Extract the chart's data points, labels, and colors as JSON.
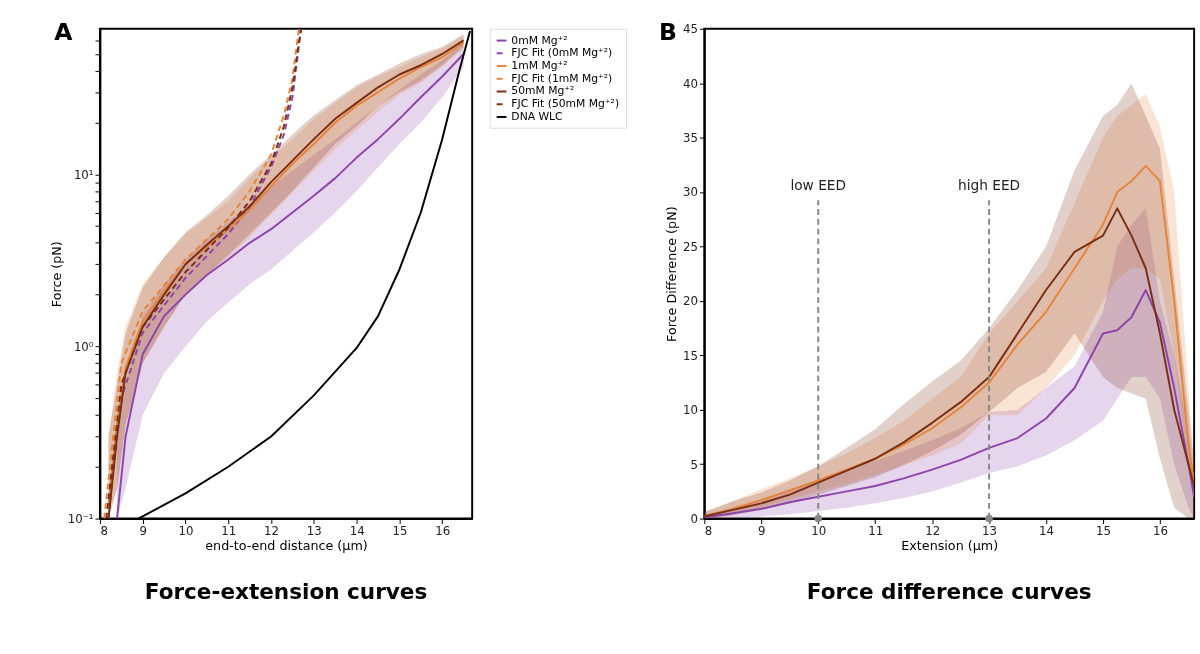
{
  "chart_data": [
    {
      "type": "line",
      "title": "Force-extension curves",
      "xlabel": "end-to-end distance (μm)",
      "ylabel": "Force (pN)",
      "annotations": [
        "A"
      ],
      "log": "y",
      "grid": false,
      "legend": "right",
      "xlim": [
        8,
        16.7
      ],
      "xticks": [
        8,
        9,
        10,
        11,
        12,
        13,
        14,
        15,
        16
      ],
      "ylim": [
        0.1,
        70
      ],
      "yticks": [
        {
          "value": 0.1,
          "label": "10⁻¹"
        },
        {
          "value": 0.2,
          "label": null
        },
        {
          "value": 0.3,
          "label": null
        },
        {
          "value": 0.4,
          "label": null
        },
        {
          "value": 0.5,
          "label": null
        },
        {
          "value": 0.6,
          "label": null
        },
        {
          "value": 0.7,
          "label": null
        },
        {
          "value": 0.8,
          "label": null
        },
        {
          "value": 0.9,
          "label": null
        },
        {
          "value": 1,
          "label": "10⁰"
        },
        {
          "value": 2,
          "label": null
        },
        {
          "value": 3,
          "label": null
        },
        {
          "value": 4,
          "label": null
        },
        {
          "value": 5,
          "label": null
        },
        {
          "value": 6,
          "label": null
        },
        {
          "value": 7,
          "label": null
        },
        {
          "value": 8,
          "label": null
        },
        {
          "value": 9,
          "label": null
        },
        {
          "value": 10,
          "label": "10¹"
        },
        {
          "value": 20,
          "label": null
        },
        {
          "value": 30,
          "label": null
        },
        {
          "value": 40,
          "label": null
        },
        {
          "value": 50,
          "label": null
        },
        {
          "value": 60,
          "label": null
        }
      ],
      "series": [
        {
          "name": "0mM Mg⁺²",
          "color": "#8e44ad",
          "line_style": "solid",
          "x": [
            8.4,
            8.6,
            9,
            9.5,
            10,
            10.5,
            11,
            11.5,
            12,
            12.5,
            13,
            13.5,
            14,
            14.5,
            15,
            15.5,
            16,
            16.5
          ],
          "values": [
            0.1,
            0.3,
            0.9,
            1.5,
            2.0,
            2.6,
            3.2,
            4.0,
            4.8,
            6,
            7.5,
            9.5,
            12.5,
            16,
            21,
            28,
            37,
            50
          ],
          "lower": [
            0.1,
            0.15,
            0.4,
            0.7,
            1.0,
            1.4,
            1.8,
            2.3,
            2.8,
            3.6,
            4.6,
            6,
            8,
            11,
            15,
            20,
            28,
            42
          ],
          "upper": [
            0.3,
            0.6,
            1.5,
            2.3,
            3.2,
            4.2,
            5.3,
            6.7,
            8.5,
            10.5,
            13,
            16,
            20,
            25,
            31,
            38,
            46,
            58
          ]
        },
        {
          "name": "FJC Fit (0mM Mg⁺²)",
          "color": "#8e44ad",
          "line_style": "dashed",
          "x": [
            8.2,
            8.5,
            9,
            10,
            11,
            11.5,
            12,
            12.3,
            12.5,
            12.7
          ],
          "values": [
            0.1,
            0.5,
            1.2,
            2.5,
            4.5,
            6.5,
            11,
            17,
            28,
            70
          ]
        },
        {
          "name": "1mM Mg⁺²",
          "color": "#e8843a",
          "line_style": "solid",
          "x": [
            8.2,
            8.4,
            8.6,
            9,
            9.5,
            10,
            10.5,
            11,
            11.5,
            12,
            12.5,
            13,
            13.5,
            14,
            14.5,
            15,
            15.5,
            16,
            16.5
          ],
          "values": [
            0.12,
            0.35,
            0.75,
            1.4,
            2.1,
            3.0,
            3.8,
            4.8,
            6.2,
            8.5,
            11.5,
            15,
            20,
            25,
            30,
            36,
            42,
            48,
            58
          ],
          "lower": [
            0.1,
            0.15,
            0.35,
            0.8,
            1.3,
            2.0,
            2.6,
            3.3,
            4.3,
            5.8,
            7.8,
            10.5,
            14,
            18,
            23,
            29,
            34,
            42,
            54
          ],
          "upper": [
            0.3,
            0.7,
            1.3,
            2.3,
            3.3,
            4.5,
            5.6,
            7,
            9.5,
            12.5,
            16,
            21,
            26,
            32,
            37,
            42,
            48,
            54,
            64
          ]
        },
        {
          "name": "FJC Fit (1mM Mg⁺²)",
          "color": "#e8843a",
          "line_style": "dashed",
          "x": [
            8.1,
            8.5,
            9,
            10,
            11,
            11.5,
            12,
            12.3,
            12.5,
            12.65
          ],
          "values": [
            0.1,
            0.8,
            1.6,
            3.2,
            5.5,
            8,
            13,
            22,
            36,
            70
          ]
        },
        {
          "name": "50mM Mg⁺²",
          "color": "#7b2e12",
          "line_style": "solid",
          "x": [
            8.2,
            8.4,
            8.6,
            9,
            9.5,
            10,
            10.5,
            11,
            11.5,
            12,
            12.5,
            13,
            13.5,
            14,
            14.5,
            15,
            15.5,
            16,
            16.5
          ],
          "values": [
            0.1,
            0.3,
            0.7,
            1.3,
            2.0,
            3.0,
            3.9,
            5.0,
            6.5,
            9,
            12,
            16,
            21,
            26,
            32,
            38,
            43,
            50,
            60
          ],
          "lower": [
            0.1,
            0.15,
            0.35,
            0.8,
            1.3,
            2.0,
            2.6,
            3.4,
            4.5,
            6,
            8,
            11,
            15,
            19,
            25,
            30,
            35,
            43,
            55
          ],
          "upper": [
            0.3,
            0.6,
            1.2,
            2.2,
            3.3,
            4.6,
            5.8,
            7.5,
            10,
            13,
            17,
            22,
            27,
            33,
            38,
            44,
            50,
            55,
            65
          ]
        },
        {
          "name": "FJC Fit (50mM Mg⁺²)",
          "color": "#7b2e12",
          "line_style": "dashed",
          "x": [
            8.15,
            8.5,
            9,
            10,
            11,
            11.5,
            12,
            12.3,
            12.5,
            12.7
          ],
          "values": [
            0.1,
            0.6,
            1.3,
            2.7,
            4.9,
            7.0,
            11.5,
            19,
            32,
            70
          ]
        },
        {
          "name": "DNA WLC",
          "color": "#000000",
          "line_style": "solid",
          "x": [
            8.9,
            10,
            11,
            12,
            13,
            14,
            14.5,
            15,
            15.5,
            16,
            16.4,
            16.65
          ],
          "values": [
            0.1,
            0.14,
            0.2,
            0.3,
            0.52,
            0.98,
            1.5,
            2.8,
            6,
            16,
            40,
            68
          ]
        }
      ]
    },
    {
      "type": "line",
      "title": "Force difference curves",
      "xlabel": "Extension (μm)",
      "ylabel": "Force Difference (pN)",
      "annotations": [
        "B"
      ],
      "grid": false,
      "xlim": [
        8,
        16.6
      ],
      "xticks": [
        8,
        9,
        10,
        11,
        12,
        13,
        14,
        15,
        16
      ],
      "ylim": [
        0,
        45
      ],
      "yticks": [
        0,
        5,
        10,
        15,
        20,
        25,
        30,
        35,
        40,
        45
      ],
      "ref_lines": [
        {
          "axis": "x",
          "value": 10,
          "label": "low EED",
          "color": "#888888",
          "line_style": "dashed"
        },
        {
          "axis": "x",
          "value": 13,
          "label": "high EED",
          "color": "#888888",
          "line_style": "dashed"
        }
      ],
      "series": [
        {
          "type": "scatter",
          "color": "#888888",
          "marker": "circle",
          "x": [
            10,
            13
          ],
          "values": [
            0,
            0
          ]
        },
        {
          "color": "#8e44ad",
          "line_style": "solid",
          "x": [
            8,
            8.5,
            9,
            9.5,
            10,
            10.5,
            11,
            11.5,
            12,
            12.5,
            13,
            13.5,
            14,
            14.5,
            15,
            15.25,
            15.5,
            15.75,
            16,
            16.25,
            16.5,
            16.6
          ],
          "values": [
            0.1,
            0.5,
            0.9,
            1.5,
            2.0,
            2.5,
            3.0,
            3.7,
            4.5,
            5.4,
            6.5,
            7.4,
            9.2,
            12,
            17,
            17.3,
            18.5,
            21,
            18,
            12,
            5,
            2
          ],
          "lower": [
            0,
            0,
            0.2,
            0.4,
            0.7,
            1.0,
            1.4,
            1.9,
            2.5,
            3.3,
            4.2,
            4.8,
            5.8,
            7.2,
            9,
            11,
            13,
            13,
            11,
            5,
            1,
            0
          ],
          "upper": [
            0.4,
            1.0,
            1.7,
            2.7,
            3.6,
            4.5,
            5.3,
            6.2,
            7.2,
            8.3,
            9.8,
            10,
            12,
            14,
            19,
            25,
            27,
            28.5,
            20,
            15,
            8,
            4
          ]
        },
        {
          "color": "#e8843a",
          "line_style": "solid",
          "x": [
            8,
            8.5,
            9,
            9.5,
            10,
            10.5,
            11,
            11.5,
            12,
            12.5,
            13,
            13.5,
            14,
            14.5,
            15,
            15.25,
            15.5,
            15.75,
            16,
            16.25,
            16.5,
            16.6
          ],
          "values": [
            0.2,
            0.9,
            1.7,
            2.6,
            3.5,
            4.5,
            5.5,
            6.8,
            8.3,
            10.2,
            12.5,
            16,
            19,
            23,
            27,
            30,
            31,
            32.4,
            31,
            20,
            7,
            3
          ],
          "lower": [
            0,
            0.3,
            1.0,
            1.8,
            2.5,
            3.2,
            4.0,
            4.9,
            5.8,
            6.9,
            9.5,
            9.5,
            12,
            15,
            20,
            22,
            23,
            23,
            22,
            15,
            5,
            2
          ],
          "upper": [
            0.6,
            1.6,
            2.7,
            3.7,
            4.8,
            6.0,
            7.4,
            9.0,
            11,
            13,
            17,
            20,
            23,
            29,
            35,
            37,
            38,
            39,
            36,
            30,
            12,
            5
          ]
        },
        {
          "color": "#7b2e12",
          "line_style": "solid",
          "x": [
            8,
            8.5,
            9,
            9.5,
            10,
            10.5,
            11,
            11.5,
            12,
            12.5,
            13,
            13.5,
            14,
            14.5,
            15,
            15.25,
            15.5,
            15.75,
            16,
            16.25,
            16.5,
            16.6
          ],
          "values": [
            0.2,
            0.8,
            1.4,
            2.2,
            3.3,
            4.4,
            5.5,
            7.0,
            8.8,
            10.7,
            13.0,
            17,
            21,
            24.5,
            26,
            28.5,
            26,
            23,
            17,
            10,
            5,
            3
          ],
          "lower": [
            0,
            0.3,
            0.8,
            1.4,
            2.2,
            3.0,
            3.8,
            4.9,
            6.2,
            7.7,
            9.8,
            12,
            13.5,
            17,
            13,
            12,
            11.5,
            11,
            5.5,
            1,
            0,
            0
          ],
          "upper": [
            0.6,
            1.6,
            2.4,
            3.5,
            4.8,
            6.5,
            8.2,
            10.5,
            12.6,
            14.5,
            17.5,
            21,
            25,
            32,
            37,
            38,
            40,
            37,
            34,
            22,
            10,
            5
          ]
        }
      ]
    }
  ]
}
